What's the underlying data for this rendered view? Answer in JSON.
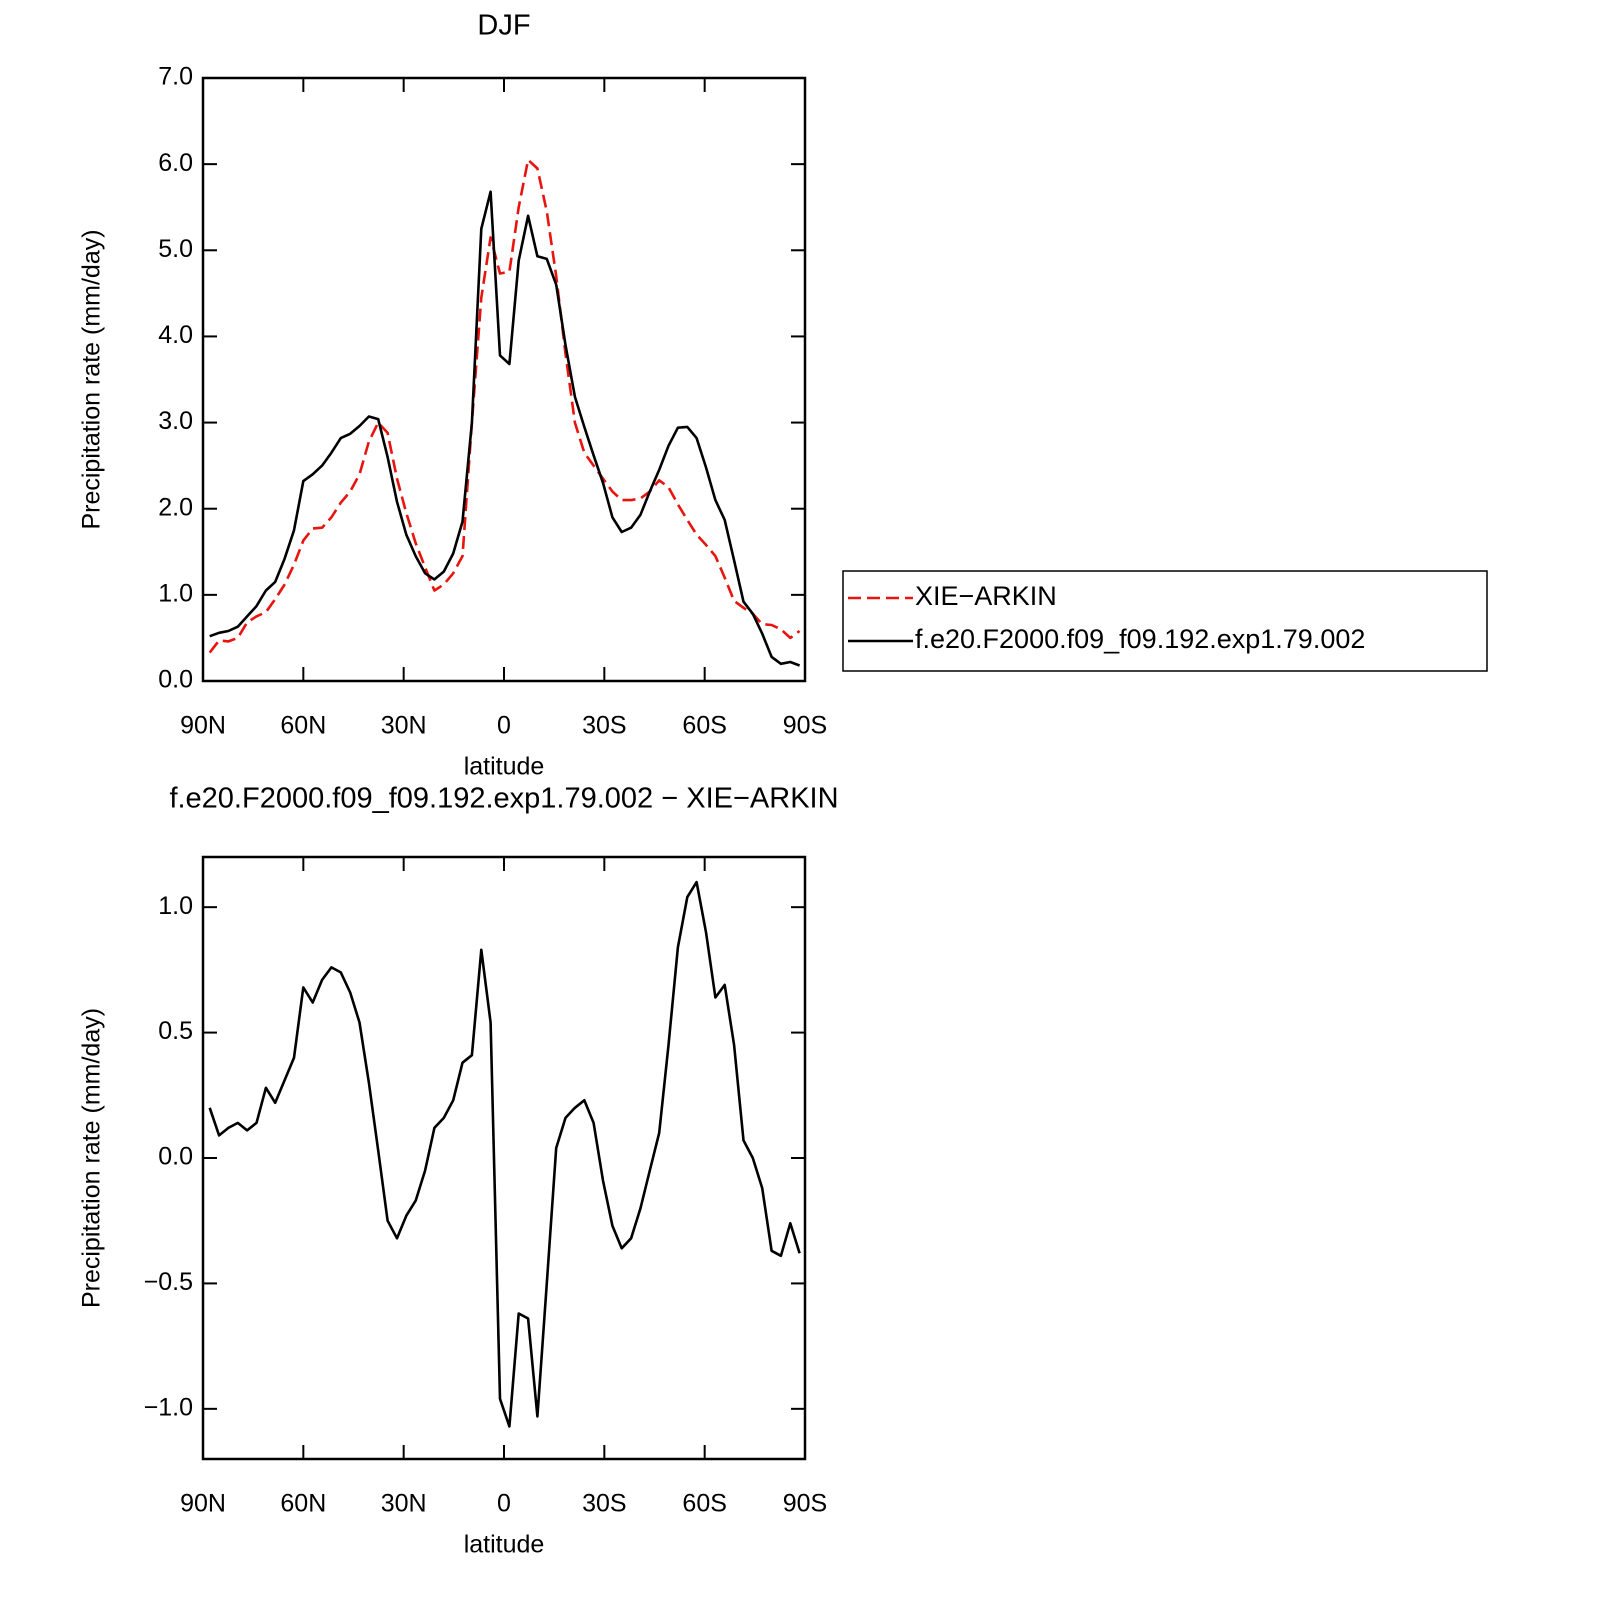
{
  "chart_data": [
    {
      "type": "line",
      "title": "DJF",
      "xlabel": "latitude",
      "ylabel": "Precipitation rate (mm/day)",
      "x": [
        88.0,
        85.2,
        82.4,
        79.6,
        76.8,
        74.0,
        71.2,
        68.4,
        65.6,
        62.8,
        60.0,
        57.2,
        54.4,
        51.6,
        48.8,
        46.0,
        43.2,
        40.4,
        37.6,
        34.8,
        32.0,
        29.2,
        26.4,
        23.6,
        20.8,
        18.0,
        15.2,
        12.4,
        9.6,
        6.8,
        4.0,
        1.2,
        -1.6,
        -4.4,
        -7.2,
        -10.0,
        -12.8,
        -15.6,
        -18.4,
        -21.2,
        -24.0,
        -26.8,
        -29.6,
        -32.4,
        -35.2,
        -38.0,
        -40.8,
        -43.6,
        -46.4,
        -49.2,
        -52.0,
        -54.8,
        -57.6,
        -60.4,
        -63.2,
        -66.0,
        -68.8,
        -71.6,
        -74.4,
        -77.2,
        -80.0,
        -82.8,
        -85.6,
        -88.4
      ],
      "series": [
        {
          "name": "XIE−ARKIN",
          "color": "#e8140e",
          "dash": true,
          "values": [
            0.33,
            0.47,
            0.46,
            0.5,
            0.68,
            0.75,
            0.8,
            0.95,
            1.12,
            1.35,
            1.63,
            1.77,
            1.78,
            1.9,
            2.07,
            2.2,
            2.4,
            2.78,
            3.0,
            2.88,
            2.35,
            1.95,
            1.6,
            1.32,
            1.05,
            1.12,
            1.25,
            1.45,
            3.0,
            4.45,
            5.15,
            4.73,
            4.75,
            5.5,
            6.05,
            5.95,
            5.45,
            4.7,
            3.8,
            3.0,
            2.65,
            2.5,
            2.35,
            2.2,
            2.1,
            2.1,
            2.12,
            2.2,
            2.33,
            2.25,
            2.05,
            1.87,
            1.7,
            1.58,
            1.45,
            1.2,
            0.93,
            0.85,
            0.78,
            0.66,
            0.65,
            0.6,
            0.5,
            0.58
          ]
        },
        {
          "name": "f.e20.F2000.f09_f09.192.exp1.79.002",
          "color": "#000000",
          "dash": false,
          "values": [
            0.52,
            0.56,
            0.58,
            0.63,
            0.75,
            0.87,
            1.05,
            1.15,
            1.42,
            1.75,
            2.32,
            2.4,
            2.5,
            2.65,
            2.82,
            2.87,
            2.96,
            3.07,
            3.04,
            2.6,
            2.08,
            1.7,
            1.45,
            1.25,
            1.18,
            1.27,
            1.48,
            1.85,
            3.0,
            5.25,
            5.68,
            3.78,
            3.68,
            4.88,
            5.4,
            4.93,
            4.9,
            4.6,
            3.9,
            3.3,
            2.95,
            2.62,
            2.3,
            1.9,
            1.73,
            1.78,
            1.93,
            2.2,
            2.45,
            2.73,
            2.94,
            2.95,
            2.82,
            2.48,
            2.1,
            1.87,
            1.4,
            0.92,
            0.78,
            0.55,
            0.28,
            0.2,
            0.22,
            0.18
          ]
        }
      ],
      "xlim": [
        90,
        -90
      ],
      "xticks": [
        {
          "value": 90,
          "label": "90N"
        },
        {
          "value": 60,
          "label": "60N"
        },
        {
          "value": 30,
          "label": "30N"
        },
        0,
        {
          "value": -30,
          "label": "30S"
        },
        {
          "value": -60,
          "label": "60S"
        },
        {
          "value": -90,
          "label": "90S"
        }
      ],
      "ylim": [
        0,
        7
      ],
      "yticks": [
        {
          "value": 0,
          "label": "0.0"
        },
        {
          "value": 1,
          "label": "1.0"
        },
        {
          "value": 2,
          "label": "2.0"
        },
        {
          "value": 3,
          "label": "3.0"
        },
        {
          "value": 4,
          "label": "4.0"
        },
        {
          "value": 5,
          "label": "5.0"
        },
        {
          "value": 6,
          "label": "6.0"
        },
        {
          "value": 7,
          "label": "7.0"
        }
      ],
      "legend": "outside-right"
    },
    {
      "type": "line",
      "title": "f.e20.F2000.f09_f09.192.exp1.79.002 − XIE−ARKIN",
      "xlabel": "latitude",
      "ylabel": "Precipitation rate (mm/day)",
      "x": [
        88.0,
        85.2,
        82.4,
        79.6,
        76.8,
        74.0,
        71.2,
        68.4,
        65.6,
        62.8,
        60.0,
        57.2,
        54.4,
        51.6,
        48.8,
        46.0,
        43.2,
        40.4,
        37.6,
        34.8,
        32.0,
        29.2,
        26.4,
        23.6,
        20.8,
        18.0,
        15.2,
        12.4,
        9.6,
        6.8,
        4.0,
        1.2,
        -1.6,
        -4.4,
        -7.2,
        -10.0,
        -12.8,
        -15.6,
        -18.4,
        -21.2,
        -24.0,
        -26.8,
        -29.6,
        -32.4,
        -35.2,
        -38.0,
        -40.8,
        -43.6,
        -46.4,
        -49.2,
        -52.0,
        -54.8,
        -57.6,
        -60.4,
        -63.2,
        -66.0,
        -68.8,
        -71.6,
        -74.4,
        -77.2,
        -80.0,
        -82.8,
        -85.6,
        -88.4
      ],
      "series": [
        {
          "color": "#000000",
          "dash": false,
          "values": [
            0.2,
            0.09,
            0.12,
            0.14,
            0.11,
            0.14,
            0.28,
            0.22,
            0.31,
            0.4,
            0.68,
            0.62,
            0.71,
            0.76,
            0.74,
            0.66,
            0.54,
            0.3,
            0.03,
            -0.25,
            -0.32,
            -0.23,
            -0.17,
            -0.05,
            0.12,
            0.16,
            0.23,
            0.38,
            0.41,
            0.83,
            0.54,
            -0.96,
            -1.07,
            -0.62,
            -0.64,
            -1.03,
            -0.5,
            0.04,
            0.16,
            0.2,
            0.23,
            0.14,
            -0.09,
            -0.27,
            -0.36,
            -0.32,
            -0.2,
            -0.05,
            0.1,
            0.45,
            0.84,
            1.04,
            1.1,
            0.9,
            0.64,
            0.69,
            0.45,
            0.07,
            0.0,
            -0.12,
            -0.37,
            -0.39,
            -0.26,
            -0.38
          ]
        }
      ],
      "xlim": [
        90,
        -90
      ],
      "xticks": [
        {
          "value": 90,
          "label": "90N"
        },
        {
          "value": 60,
          "label": "60N"
        },
        {
          "value": 30,
          "label": "30N"
        },
        0,
        {
          "value": -30,
          "label": "30S"
        },
        {
          "value": -60,
          "label": "60S"
        },
        {
          "value": -90,
          "label": "90S"
        }
      ],
      "ylim": [
        -1.2,
        1.2
      ],
      "yticks": [
        {
          "value": -1,
          "label": "−1.0"
        },
        {
          "value": -0.5,
          "label": "−0.5"
        },
        {
          "value": 0,
          "label": "0.0"
        },
        {
          "value": 0.5,
          "label": "0.5"
        },
        {
          "value": 1,
          "label": "1.0"
        }
      ]
    }
  ]
}
